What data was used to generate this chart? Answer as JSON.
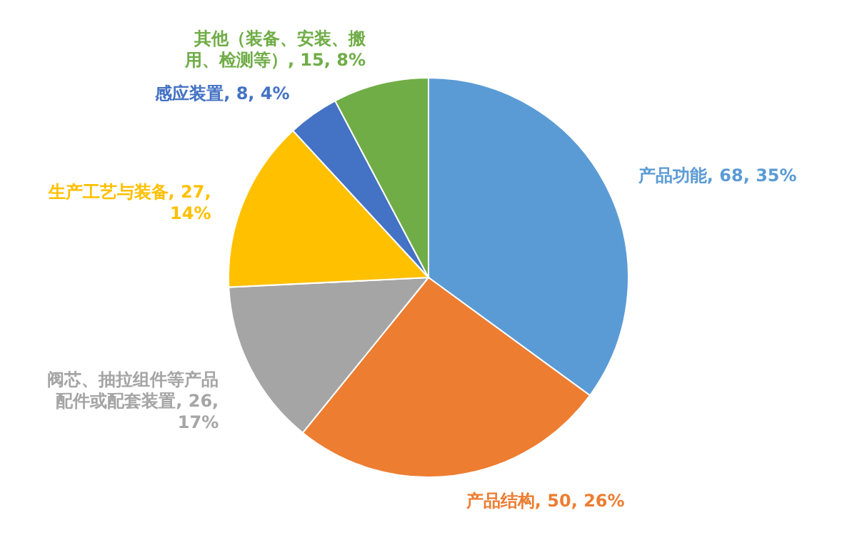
{
  "chart_data": {
    "type": "pie",
    "categories": [
      "产品功能, 68, 35%",
      "产品结构, 50, 26%",
      "阀芯、抽拉组件等产品配件或配套装置, 26, 17%",
      "生产工艺与装备, 27, 14%",
      "感应装置, 8, 4%",
      "其他（装备、安装、搬用、检测等）, 15, 8%"
    ],
    "values": [
      68,
      50,
      26,
      27,
      8,
      15
    ],
    "colors": [
      "#5b9bd5",
      "#ed7d31",
      "#a5a5a5",
      "#ffc000",
      "#4472c4",
      "#70ad47"
    ],
    "legend": false
  }
}
